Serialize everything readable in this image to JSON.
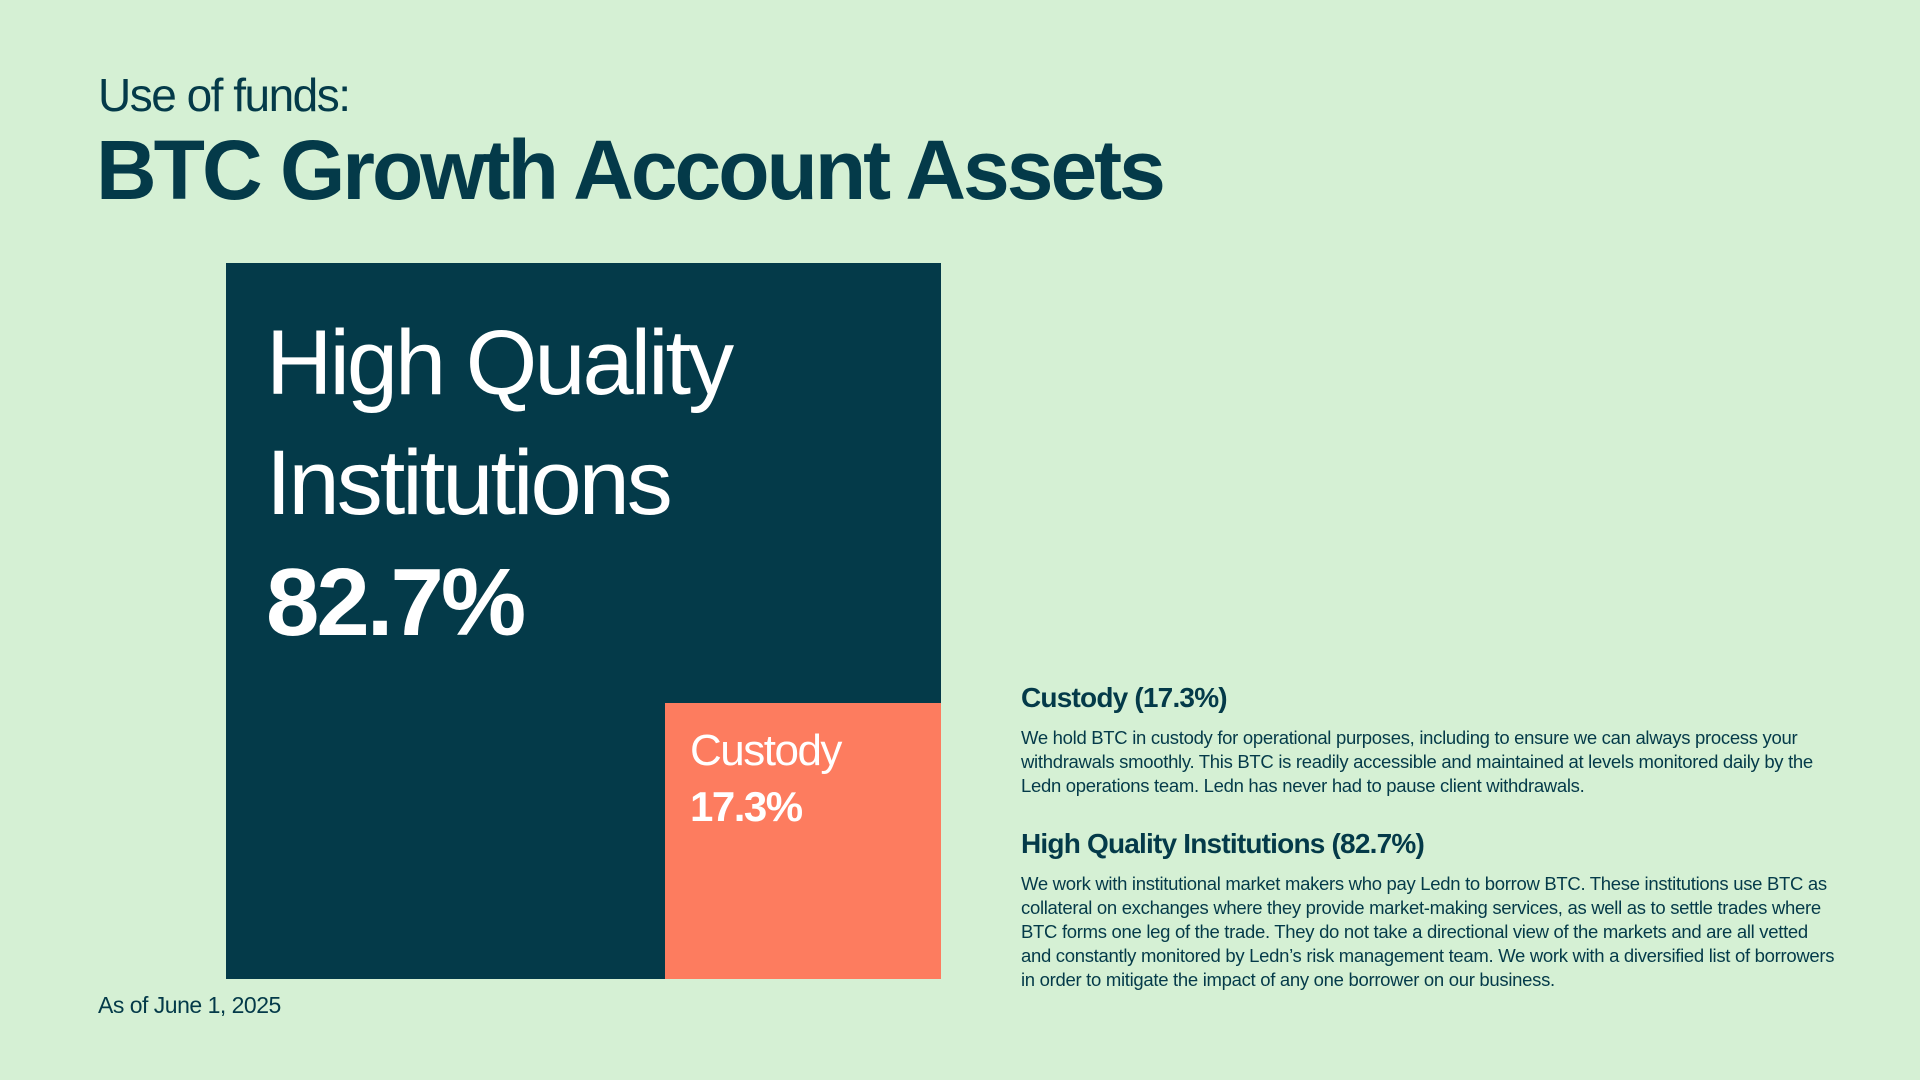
{
  "header": {
    "kicker": "Use of funds:",
    "title": "BTC Growth Account Assets"
  },
  "footer": {
    "as_of": "As of June 1, 2025"
  },
  "colors": {
    "background": "#d5f0d4",
    "primary": "#043a49",
    "accent": "#fd7c5f"
  },
  "chart_data": {
    "type": "treemap",
    "title": "BTC Growth Account Assets",
    "unit": "%",
    "segments": [
      {
        "name": "High Quality Institutions",
        "value": 82.7,
        "label": "82.7%",
        "color": "#043a49"
      },
      {
        "name": "Custody",
        "value": 17.3,
        "label": "17.3%",
        "color": "#fd7c5f"
      }
    ]
  },
  "notes": [
    {
      "heading": "Custody (17.3%)",
      "body": "We hold BTC in custody for operational purposes, including to ensure we can always process your withdrawals smoothly. This BTC is readily accessible and maintained at levels monitored daily by the Ledn operations team. Ledn has never had to pause client withdrawals."
    },
    {
      "heading": "High Quality Institutions (82.7%)",
      "body": "We work with institutional market makers who pay Ledn to borrow BTC. These institutions use BTC as collateral on exchanges where they provide market-making services, as well as to settle trades where BTC forms one leg of the trade. They do not take a directional view of the markets and are all vetted and constantly monitored by Ledn’s risk management team. We work with a diversified list of borrowers in order to mitigate the impact of any one borrower on our business."
    }
  ]
}
